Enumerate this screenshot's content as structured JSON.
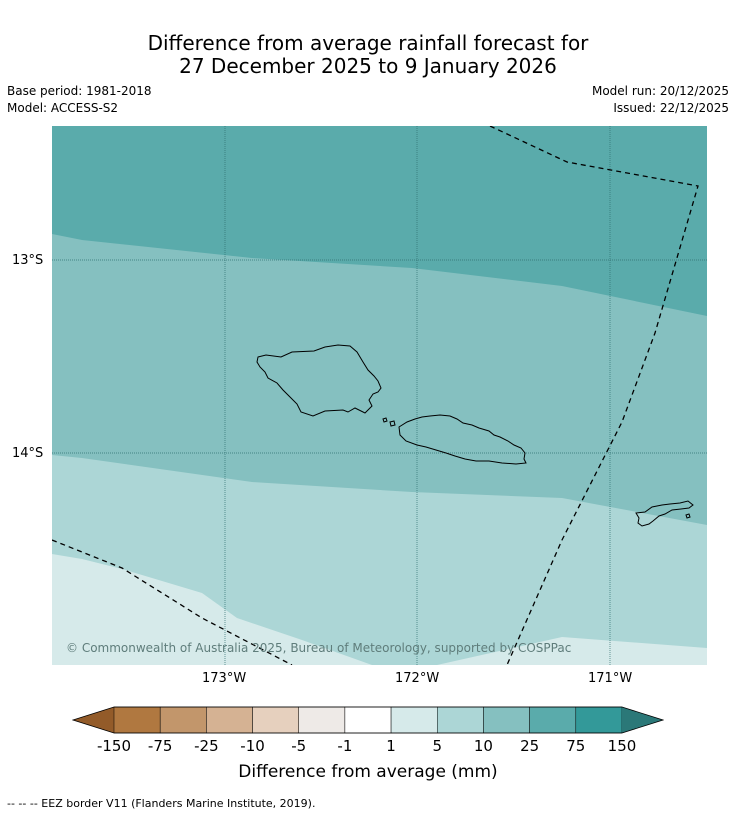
{
  "title": {
    "line1": "Difference from average rainfall forecast for",
    "line2": "27 December 2025 to 9 January 2026"
  },
  "info": {
    "base_period": "Base period: 1981-2018",
    "model": "Model: ACCESS-S2",
    "model_run": "Model run: 20/12/2025",
    "issued": "Issued: 22/12/2025"
  },
  "map": {
    "lat_labels": [
      "13°S",
      "14°S"
    ],
    "lon_labels": [
      "173°W",
      "172°W",
      "171°W"
    ],
    "copyright": "© Commonwealth of Australia 2025, Bureau of Meteorology, supported by COSPPac",
    "colors": {
      "band_25_75": "#5aabab",
      "band_10_25": "#85c0c0",
      "band_5_10": "#acd6d6",
      "band_1_5": "#d6eaea",
      "coastline": "#000000",
      "eez_border": "#000000"
    }
  },
  "colorbar": {
    "title": "Difference from average (mm)",
    "ticks": [
      "-150",
      "-75",
      "-25",
      "-10",
      "-5",
      "-1",
      "1",
      "5",
      "10",
      "25",
      "75",
      "150"
    ],
    "colors": [
      "#935b29",
      "#b07840",
      "#c2966b",
      "#d5b293",
      "#e6d0be",
      "#eeeae7",
      "#ffffff",
      "#d6eaea",
      "#acd6d6",
      "#85c0c0",
      "#5aabab",
      "#339999",
      "#2b7878"
    ]
  },
  "footnote": "--  --  -- EEZ border V11 (Flanders Marine Institute, 2019)."
}
